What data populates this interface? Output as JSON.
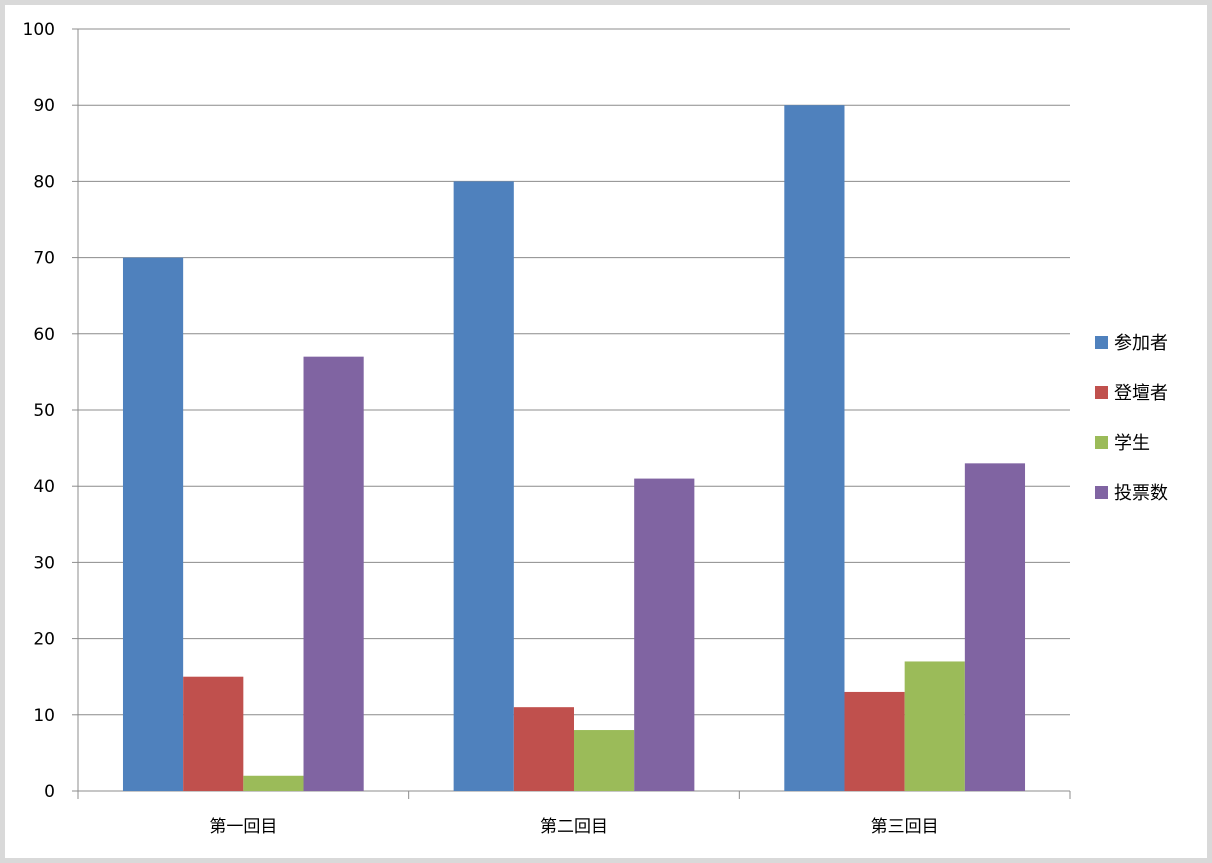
{
  "chart_data": {
    "type": "bar",
    "title": "",
    "xlabel": "",
    "ylabel": "",
    "categories": [
      "第一回目",
      "第二回目",
      "第三回目"
    ],
    "ylim": [
      0,
      100
    ],
    "yticks": [
      0,
      10,
      20,
      30,
      40,
      50,
      60,
      70,
      80,
      90,
      100
    ],
    "grid": true,
    "legend_position": "right",
    "series": [
      {
        "name": "参加者",
        "color": "#4f81bd",
        "values": [
          70,
          80,
          90
        ]
      },
      {
        "name": "登壇者",
        "color": "#c0504d",
        "values": [
          15,
          11,
          13
        ]
      },
      {
        "name": "学生",
        "color": "#9bbb59",
        "values": [
          2,
          8,
          17
        ]
      },
      {
        "name": "投票数",
        "color": "#8064a2",
        "values": [
          57,
          41,
          43
        ]
      }
    ]
  }
}
